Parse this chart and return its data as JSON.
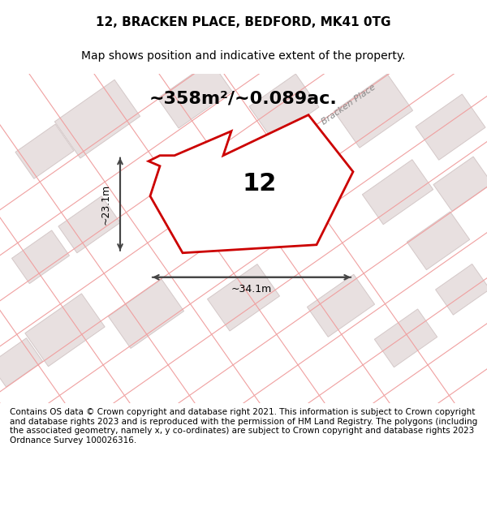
{
  "title": "12, BRACKEN PLACE, BEDFORD, MK41 0TG",
  "subtitle": "Map shows position and indicative extent of the property.",
  "area_label": "~358m²/~0.089ac.",
  "plot_number": "12",
  "width_label": "~34.1m",
  "height_label": "~23.1m",
  "footer": "Contains OS data © Crown copyright and database right 2021. This information is subject to Crown copyright and database rights 2023 and is reproduced with the permission of HM Land Registry. The polygons (including the associated geometry, namely x, y co-ordinates) are subject to Crown copyright and database rights 2023 Ordnance Survey 100026316.",
  "bg_color": "#ffffff",
  "map_bg": "#f5f0f0",
  "road_color": "#ffffff",
  "plot_fill": "#ffffff",
  "plot_edge": "#cc0000",
  "building_fill": "#e0d8d8",
  "building_edge": "#ccbbbb",
  "street_label": "Bracken Place",
  "title_fontsize": 11,
  "subtitle_fontsize": 10,
  "area_fontsize": 18,
  "plot_num_fontsize": 22,
  "dim_fontsize": 10,
  "footer_fontsize": 7.5
}
